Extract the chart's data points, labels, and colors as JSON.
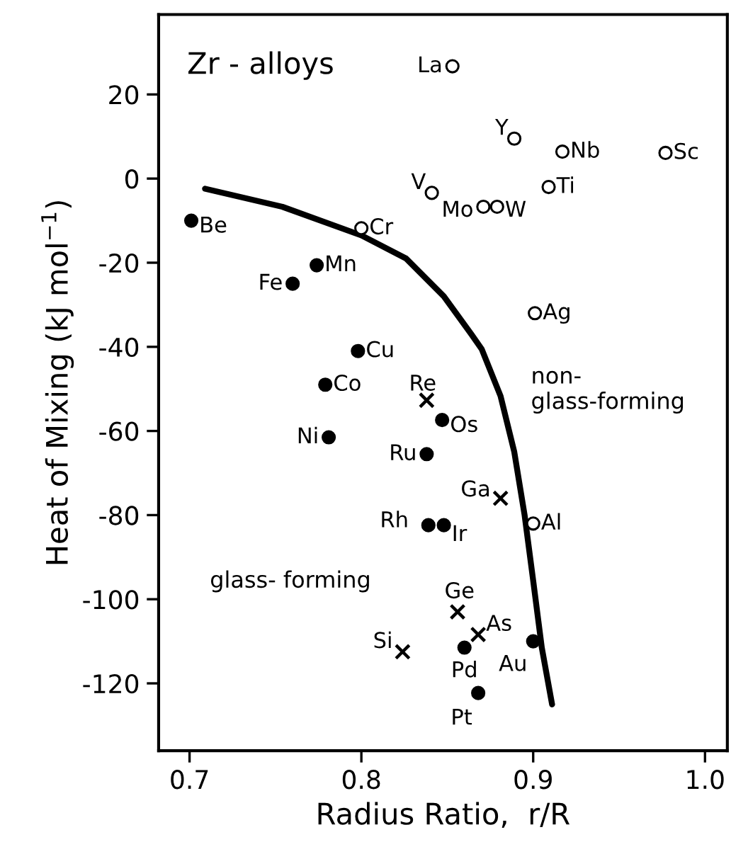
{
  "chart_data": {
    "type": "scatter",
    "title": "Zr - alloys",
    "xlabel": "Radius Ratio,  r/R",
    "ylabel": "Heat of Mixing (kJ mol$^{−1}$)",
    "xlim": [
      0.682,
      1.013
    ],
    "ylim": [
      -136,
      39
    ],
    "xticks": [
      0.7,
      0.8,
      0.9,
      {
        "value": 1.0,
        "label": "1.0"
      }
    ],
    "yticks": [
      -120,
      -100,
      -80,
      -60,
      -40,
      -20,
      0,
      20
    ],
    "grid": false,
    "series": [
      {
        "marker": "circle",
        "color": "#000000",
        "x": [
          0.701,
          0.774,
          0.76,
          0.798,
          0.779,
          0.847,
          0.781,
          0.838,
          0.839,
          0.848,
          0.86,
          0.9,
          0.868
        ],
        "values": [
          -10,
          -20.6,
          -25,
          -41,
          -49,
          -57.4,
          -61.5,
          -65.5,
          -82.4,
          -82.4,
          -111.5,
          -110,
          -122.3
        ]
      },
      {
        "marker": "circle",
        "color": "#ffffff",
        "x": [
          0.853,
          0.889,
          0.917,
          0.977,
          0.909,
          0.841,
          0.871,
          0.879,
          0.8,
          0.901,
          0.9
        ],
        "values": [
          26.7,
          9.5,
          6.4,
          6.1,
          -2,
          -3.4,
          -6.7,
          -6.7,
          -11.8,
          -32,
          -82
        ]
      },
      {
        "marker": "cross",
        "color": "#000000",
        "x": [
          0.838,
          0.881,
          0.856,
          0.868,
          0.824
        ],
        "values": [
          -52.7,
          -76,
          -103,
          -108.4,
          -112.5
        ]
      },
      {
        "type": "line",
        "marker": "none",
        "color": "#000000",
        "x": [
          0.709,
          0.754,
          0.8,
          0.826,
          0.848,
          0.864,
          0.87,
          0.881,
          0.889,
          0.895,
          0.9,
          0.905,
          0.911
        ],
        "values": [
          -2.4,
          -6.7,
          -13.5,
          -19,
          -28,
          -37,
          -40.5,
          -51.7,
          -65,
          -80,
          -95.6,
          -111.5,
          -125
        ]
      }
    ],
    "annotations": [
      {
        "text": "Be",
        "x": 0.701,
        "y": -10
      },
      {
        "text": "Mn",
        "x": 0.774,
        "y": -20.6
      },
      {
        "text": "Fe",
        "x": 0.76,
        "y": -25
      },
      {
        "text": "Cu",
        "x": 0.798,
        "y": -41
      },
      {
        "text": "Co",
        "x": 0.779,
        "y": -49
      },
      {
        "text": "Os",
        "x": 0.847,
        "y": -57.4
      },
      {
        "text": "Ni",
        "x": 0.781,
        "y": -61.5
      },
      {
        "text": "Ru",
        "x": 0.838,
        "y": -65.5
      },
      {
        "text": "Rh",
        "x": 0.839,
        "y": -82.4
      },
      {
        "text": "Ir",
        "x": 0.848,
        "y": -82.4
      },
      {
        "text": "Pd",
        "x": 0.86,
        "y": -111.5
      },
      {
        "text": "Au",
        "x": 0.9,
        "y": -110
      },
      {
        "text": "Pt",
        "x": 0.868,
        "y": -122.3
      },
      {
        "text": "La",
        "x": 0.853,
        "y": 26.7
      },
      {
        "text": "Y",
        "x": 0.889,
        "y": 9.5
      },
      {
        "text": "Nb",
        "x": 0.917,
        "y": 6.4
      },
      {
        "text": "Sc",
        "x": 0.977,
        "y": 6.1
      },
      {
        "text": "Ti",
        "x": 0.909,
        "y": -2
      },
      {
        "text": "V",
        "x": 0.841,
        "y": -3.4
      },
      {
        "text": "Mo",
        "x": 0.871,
        "y": -6.7
      },
      {
        "text": "W",
        "x": 0.879,
        "y": -6.7
      },
      {
        "text": "Cr",
        "x": 0.8,
        "y": -11.8
      },
      {
        "text": "Ag",
        "x": 0.901,
        "y": -32
      },
      {
        "text": "Al",
        "x": 0.9,
        "y": -82
      },
      {
        "text": "Re",
        "x": 0.838,
        "y": -52.7
      },
      {
        "text": "Ga",
        "x": 0.881,
        "y": -76
      },
      {
        "text": "Ge",
        "x": 0.856,
        "y": -103
      },
      {
        "text": "As",
        "x": 0.868,
        "y": -108.4
      },
      {
        "text": "Si",
        "x": 0.824,
        "y": -112.5
      },
      "non-\nglass-forming",
      "glass- forming"
    ]
  }
}
